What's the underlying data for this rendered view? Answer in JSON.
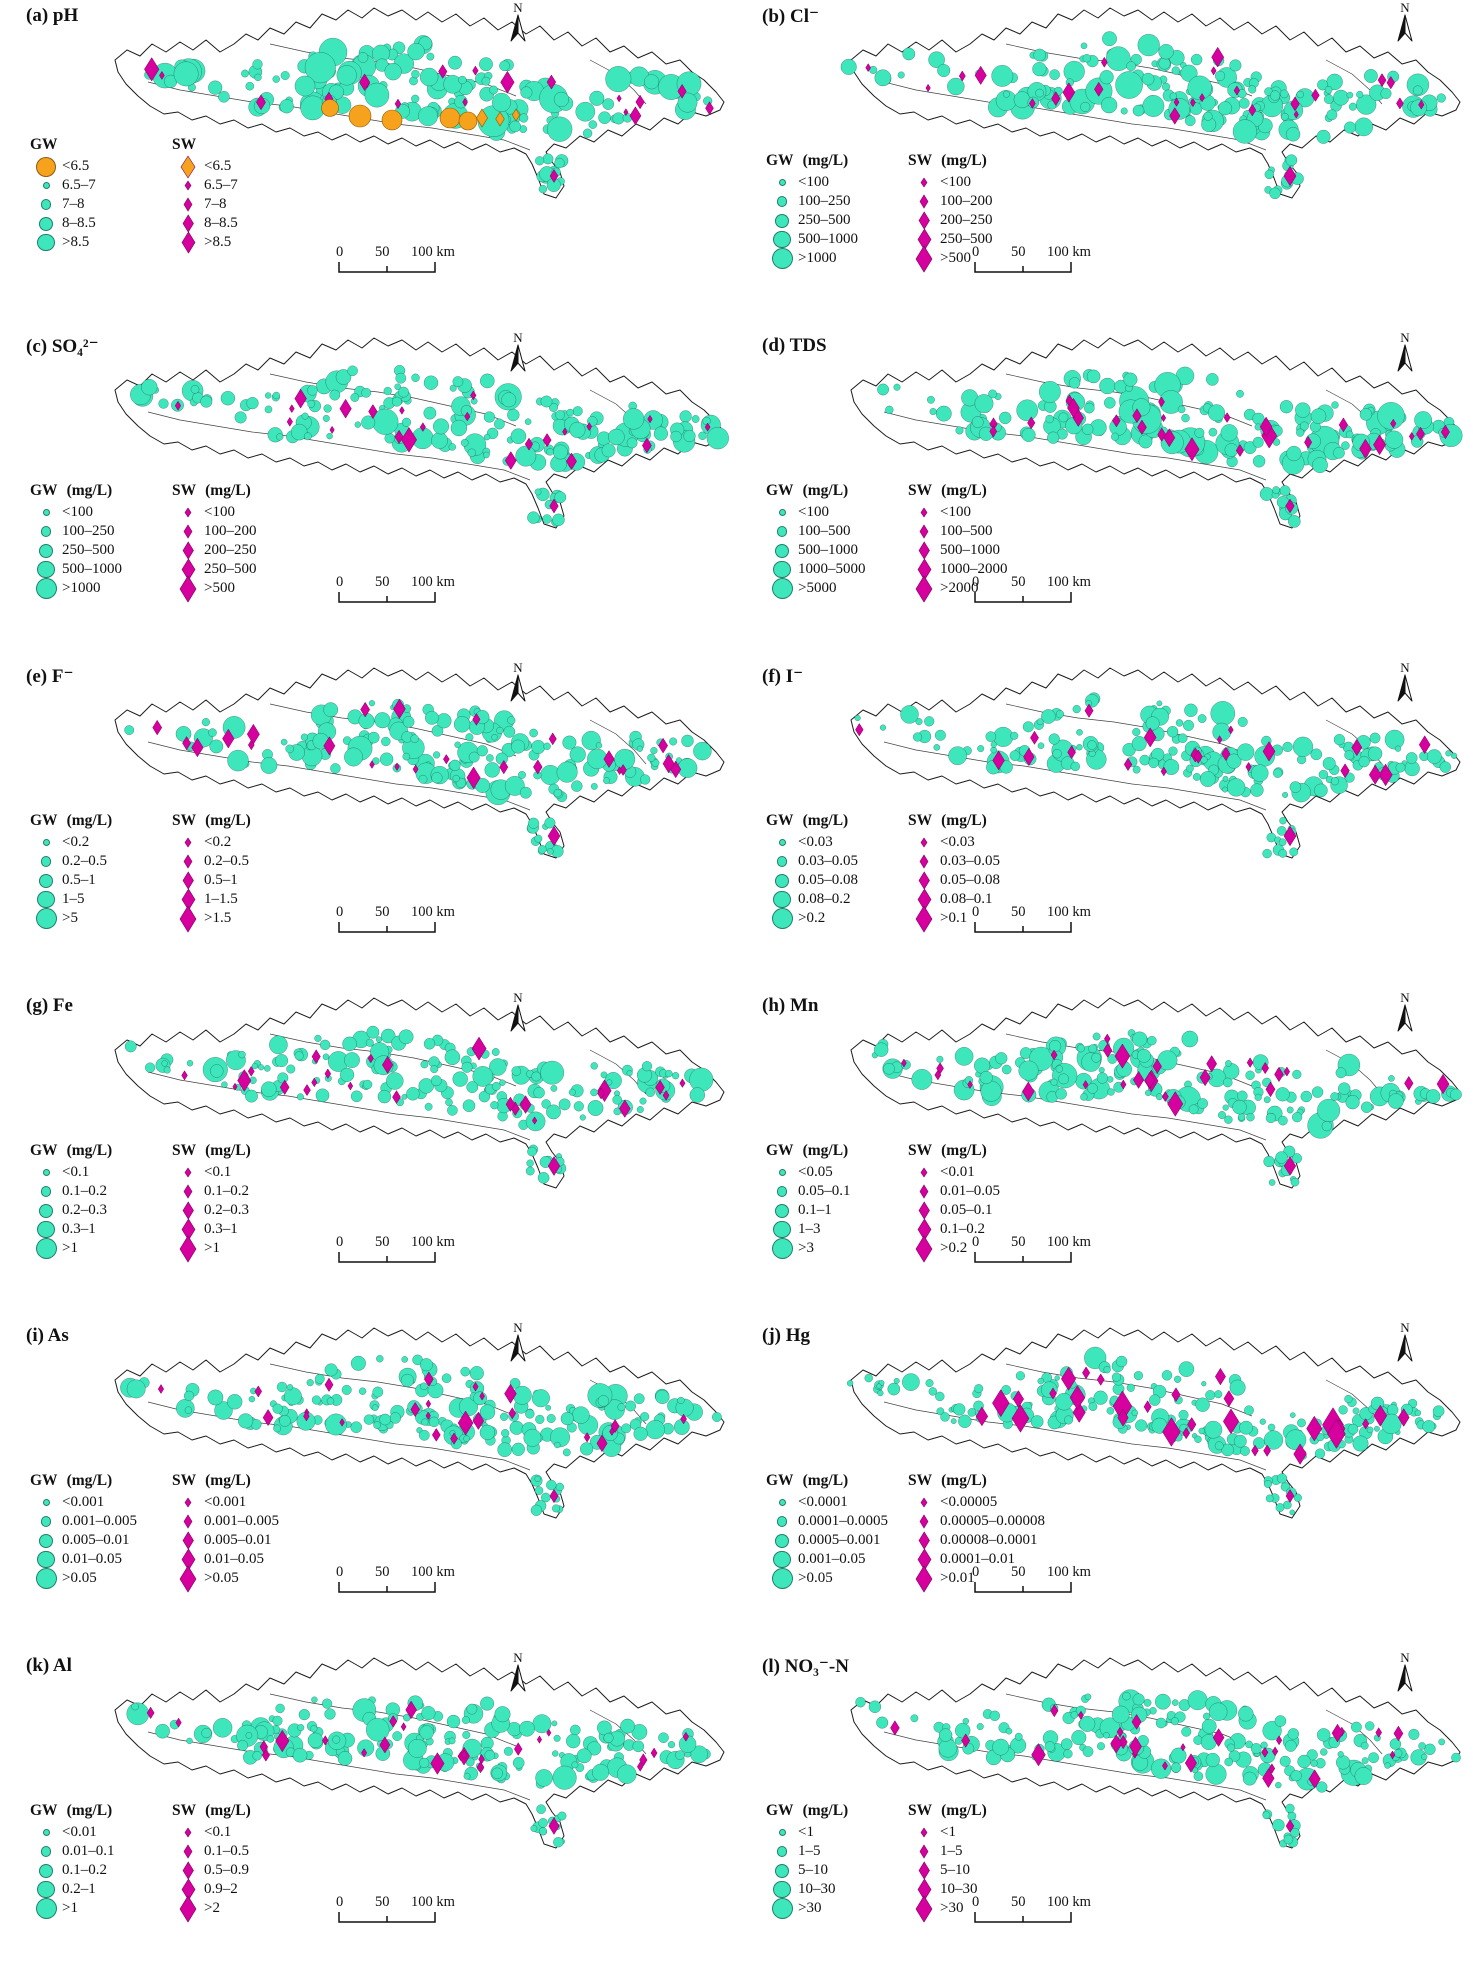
{
  "figure": {
    "north_label": "N",
    "scalebar_labels": [
      "0",
      "50",
      "100 km"
    ]
  },
  "colors": {
    "gw": "#3EE6BC",
    "sw": "#D6009E",
    "anomaly": "#F7A21C",
    "outline": "#1C1C1C"
  },
  "panels": [
    {
      "id": "a",
      "title": "(a) pH",
      "gw_header": "GW",
      "gw_unit": "",
      "sw_header": "SW",
      "sw_unit": "",
      "anomaly_first": true,
      "gw": [
        "<6.5",
        "6.5–7",
        "7–8",
        "8–8.5",
        ">8.5"
      ],
      "sw": [
        "<6.5",
        "6.5–7",
        "7–8",
        "8–8.5",
        ">8.5"
      ]
    },
    {
      "id": "b",
      "title": "(b) Cl⁻",
      "gw_header": "GW",
      "gw_unit": "(mg/L)",
      "sw_header": "SW",
      "sw_unit": "(mg/L)",
      "anomaly_first": false,
      "gw": [
        "<100",
        "100–250",
        "250–500",
        "500–1000",
        ">1000"
      ],
      "sw": [
        "<100",
        "100–200",
        "200–250",
        "250–500",
        ">500"
      ]
    },
    {
      "id": "c",
      "title": "(c) SO₄²⁻",
      "gw_header": "GW",
      "gw_unit": "(mg/L)",
      "sw_header": "SW",
      "sw_unit": "(mg/L)",
      "anomaly_first": false,
      "gw": [
        "<100",
        "100–250",
        "250–500",
        "500–1000",
        ">1000"
      ],
      "sw": [
        "<100",
        "100–200",
        "200–250",
        "250–500",
        ">500"
      ]
    },
    {
      "id": "d",
      "title": "(d) TDS",
      "gw_header": "GW",
      "gw_unit": "(mg/L)",
      "sw_header": "SW",
      "sw_unit": "(mg/L)",
      "anomaly_first": false,
      "gw": [
        "<100",
        "100–500",
        "500–1000",
        "1000–5000",
        ">5000"
      ],
      "sw": [
        "<100",
        "100–500",
        "500–1000",
        "1000–2000",
        ">2000"
      ]
    },
    {
      "id": "e",
      "title": "(e) F⁻",
      "gw_header": "GW",
      "gw_unit": "(mg/L)",
      "sw_header": "SW",
      "sw_unit": "(mg/L)",
      "anomaly_first": false,
      "gw": [
        "<0.2",
        "0.2–0.5",
        "0.5–1",
        "1–5",
        ">5"
      ],
      "sw": [
        "<0.2",
        "0.2–0.5",
        "0.5–1",
        "1–1.5",
        ">1.5"
      ]
    },
    {
      "id": "f",
      "title": "(f) I⁻",
      "gw_header": "GW",
      "gw_unit": "(mg/L)",
      "sw_header": "SW",
      "sw_unit": "(mg/L)",
      "anomaly_first": false,
      "gw": [
        "<0.03",
        "0.03–0.05",
        "0.05–0.08",
        "0.08–0.2",
        ">0.2"
      ],
      "sw": [
        "<0.03",
        "0.03–0.05",
        "0.05–0.08",
        "0.08–0.1",
        ">0.1"
      ]
    },
    {
      "id": "g",
      "title": "(g) Fe",
      "gw_header": "GW",
      "gw_unit": "(mg/L)",
      "sw_header": "SW",
      "sw_unit": "(mg/L)",
      "anomaly_first": false,
      "gw": [
        "<0.1",
        "0.1–0.2",
        "0.2–0.3",
        "0.3–1",
        ">1"
      ],
      "sw": [
        "<0.1",
        "0.1–0.2",
        "0.2–0.3",
        "0.3–1",
        ">1"
      ]
    },
    {
      "id": "h",
      "title": "(h) Mn",
      "gw_header": "GW",
      "gw_unit": "(mg/L)",
      "sw_header": "SW",
      "sw_unit": "(mg/L)",
      "anomaly_first": false,
      "gw": [
        "<0.05",
        "0.05–0.1",
        "0.1–1",
        "1–3",
        ">3"
      ],
      "sw": [
        "<0.01",
        "0.01–0.05",
        "0.05–0.1",
        "0.1–0.2",
        ">0.2"
      ]
    },
    {
      "id": "i",
      "title": "(i) As",
      "gw_header": "GW",
      "gw_unit": "(mg/L)",
      "sw_header": "SW",
      "sw_unit": "(mg/L)",
      "anomaly_first": false,
      "gw": [
        "<0.001",
        "0.001–0.005",
        "0.005–0.01",
        "0.01–0.05",
        ">0.05"
      ],
      "sw": [
        "<0.001",
        "0.001–0.005",
        "0.005–0.01",
        "0.01–0.05",
        ">0.05"
      ]
    },
    {
      "id": "j",
      "title": "(j) Hg",
      "gw_header": "GW",
      "gw_unit": "(mg/L)",
      "sw_header": "SW",
      "sw_unit": "(mg/L)",
      "anomaly_first": false,
      "gw": [
        "<0.0001",
        "0.0001–0.0005",
        "0.0005–0.001",
        "0.001–0.05",
        ">0.05"
      ],
      "sw": [
        "<0.00005",
        "0.00005–0.00008",
        "0.00008–0.0001",
        "0.0001–0.01",
        ">0.01"
      ]
    },
    {
      "id": "k",
      "title": "(k) Al",
      "gw_header": "GW",
      "gw_unit": "(mg/L)",
      "sw_header": "SW",
      "sw_unit": "(mg/L)",
      "anomaly_first": false,
      "gw": [
        "<0.01",
        "0.01–0.1",
        "0.1–0.2",
        "0.2–1",
        ">1"
      ],
      "sw": [
        "<0.1",
        "0.1–0.5",
        "0.5–0.9",
        "0.9–2",
        ">2"
      ]
    },
    {
      "id": "l",
      "title": "(l) NO₃⁻-N",
      "gw_header": "GW",
      "gw_unit": "(mg/L)",
      "sw_header": "SW",
      "sw_unit": "(mg/L)",
      "anomaly_first": false,
      "gw": [
        "<1",
        "1–5",
        "5–10",
        "10–30",
        ">30"
      ],
      "sw": [
        "<1",
        "1–5",
        "5–10",
        "10–30",
        ">30"
      ]
    }
  ]
}
